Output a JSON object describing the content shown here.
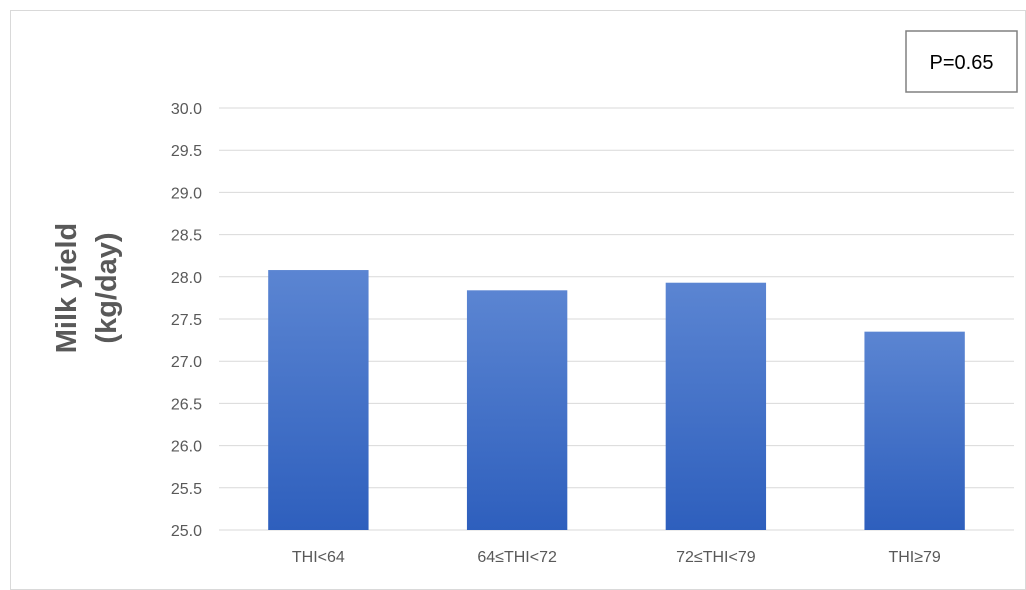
{
  "chart_data": {
    "type": "bar",
    "categories": [
      "THI<64",
      "64≤THI<72",
      "72≤THI<79",
      "THI≥79"
    ],
    "values": [
      28.08,
      27.84,
      27.93,
      27.35
    ],
    "title": "",
    "xlabel": "",
    "ylabel_lines": [
      "Milk yield",
      "(kg/day)"
    ],
    "ylim": [
      25.0,
      30.0
    ],
    "yticks": [
      "25.0",
      "25.5",
      "26.0",
      "26.5",
      "27.0",
      "27.5",
      "28.0",
      "28.5",
      "29.0",
      "29.5",
      "30.0"
    ],
    "grid": true,
    "legend": "none",
    "annotation": "P=0.65",
    "colors": {
      "bar_top": "#5b85d2",
      "bar_bottom": "#2e5fbd",
      "grid": "#d9d9d9",
      "text": "#595959"
    }
  }
}
